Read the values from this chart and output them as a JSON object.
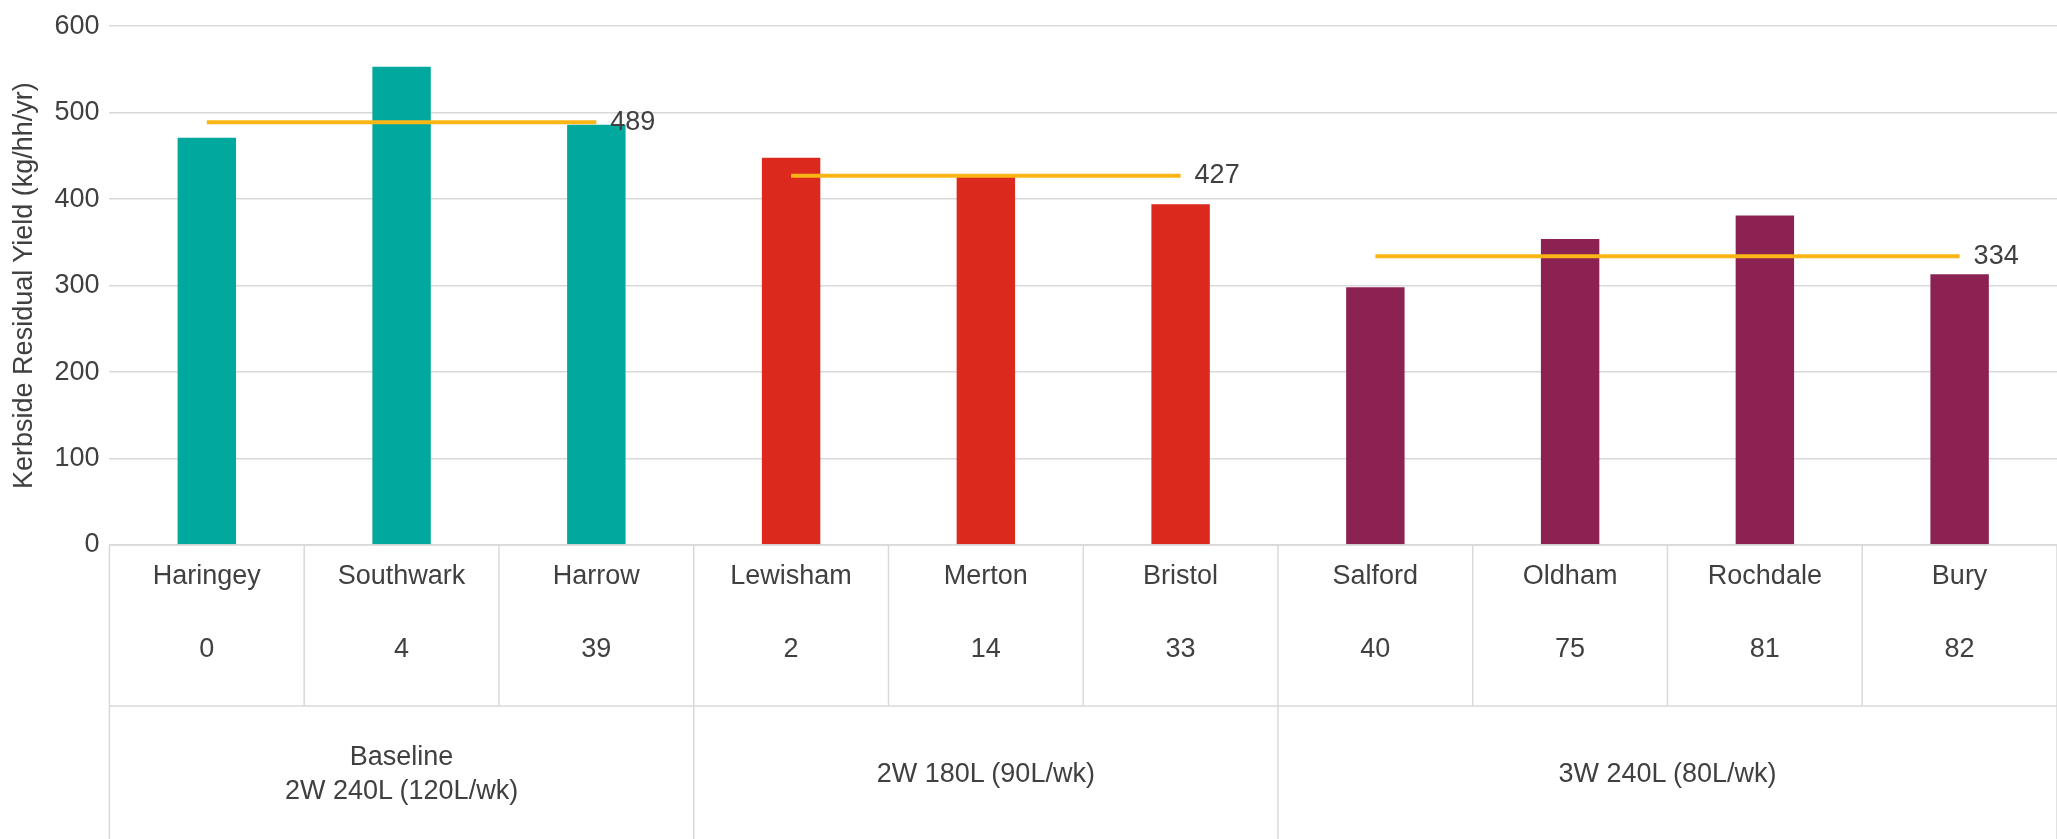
{
  "chart_data": {
    "type": "bar",
    "ylabel": "Kerbside Residual Yield (kg/hh/yr)",
    "categories": [
      "Haringey",
      "Southwark",
      "Harrow",
      "Lewisham",
      "Merton",
      "Bristol",
      "Salford",
      "Oldham",
      "Rochdale",
      "Bury"
    ],
    "series": [
      {
        "color": "#00a89d",
        "values": [
          471,
          553,
          486,
          null,
          null,
          null,
          null,
          null,
          null,
          null
        ]
      },
      {
        "color": "#dc291e",
        "values": [
          null,
          null,
          null,
          448,
          427,
          394,
          null,
          null,
          null,
          null
        ]
      },
      {
        "color": "#8b2252",
        "values": [
          null,
          null,
          null,
          null,
          null,
          null,
          298,
          354,
          381,
          313
        ]
      },
      {
        "type": "line",
        "color": "#fbb616",
        "values": [
          489,
          489,
          489,
          null,
          null,
          null,
          null,
          null,
          null,
          null
        ]
      },
      {
        "type": "line",
        "color": "#fbb616",
        "values": [
          null,
          null,
          null,
          427,
          427,
          427,
          null,
          null,
          null,
          null
        ]
      },
      {
        "type": "line",
        "color": "#fbb616",
        "values": [
          null,
          null,
          null,
          null,
          null,
          null,
          334,
          334,
          334,
          334
        ]
      }
    ],
    "annotations": [
      {
        "text": "489",
        "x": "Harrow",
        "y": 489
      },
      {
        "text": "427",
        "x": "Bristol",
        "y": 427
      },
      {
        "text": "334",
        "x": "Bury",
        "y": 334
      },
      "0",
      "4",
      "39",
      "2",
      "14",
      "33",
      "40",
      "75",
      "81",
      "82",
      "Baseline\n2W 240L (120L/wk)",
      "2W 180L (90L/wk)",
      "3W 240L (80L/wk)"
    ],
    "ylim": [
      0,
      600
    ],
    "yticks": [
      0,
      100,
      200,
      300,
      400,
      500,
      600
    ],
    "grid": "y",
    "marker": "none"
  }
}
